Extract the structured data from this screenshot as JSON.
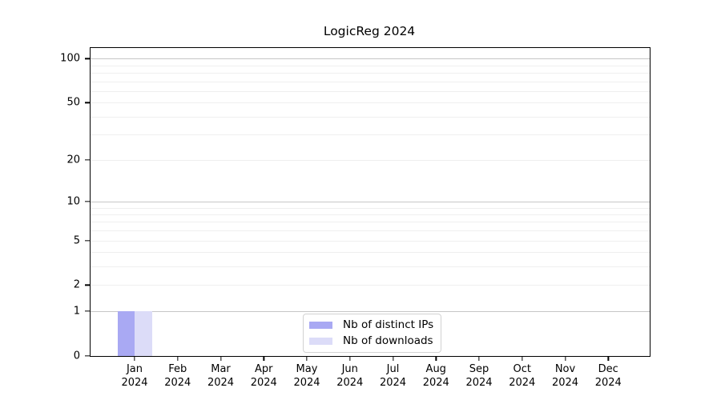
{
  "chart_data": {
    "type": "bar",
    "title": "LogicReg 2024",
    "categories": [
      "Jan 2024",
      "Feb 2024",
      "Mar 2024",
      "Apr 2024",
      "May 2024",
      "Jun 2024",
      "Jul 2024",
      "Aug 2024",
      "Sep 2024",
      "Oct 2024",
      "Nov 2024",
      "Dec 2024"
    ],
    "series": [
      {
        "name": "Nb of distinct IPs",
        "color": "#a9a9f3",
        "values": [
          1,
          0,
          0,
          0,
          0,
          0,
          0,
          0,
          0,
          0,
          0,
          0
        ]
      },
      {
        "name": "Nb of downloads",
        "color": "#dcdcf8",
        "values": [
          1,
          0,
          0,
          0,
          0,
          0,
          0,
          0,
          0,
          0,
          0,
          0
        ]
      }
    ],
    "xlabel": "",
    "ylabel": "",
    "y_scale": "log1p",
    "ylim": [
      0,
      118
    ],
    "y_tick_values": [
      0,
      1,
      2,
      5,
      10,
      20,
      50,
      100
    ],
    "y_tick_labels": [
      "0",
      "1",
      "2",
      "5",
      "10",
      "20",
      "50",
      "100"
    ],
    "y_gridlines_emphasized": [
      1,
      10,
      100
    ],
    "y_gridlines_light": [
      2,
      3,
      4,
      5,
      6,
      7,
      8,
      9,
      20,
      30,
      40,
      50,
      60,
      70,
      80,
      90
    ],
    "grid": "on",
    "legend_position": "bottom-center",
    "colors": {
      "grid_major": "#c6c6c6",
      "grid_light": "#efefef",
      "axis": "#000000",
      "text": "#000000",
      "background": "#ffffff"
    }
  }
}
